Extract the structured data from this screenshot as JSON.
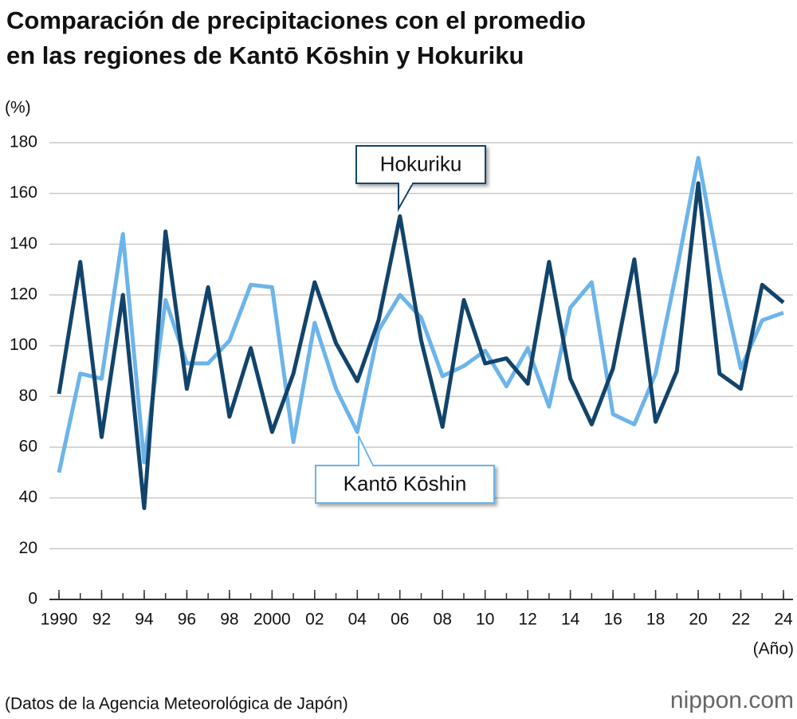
{
  "chart_data": {
    "type": "line",
    "title": [
      "Comparación de precipitaciones con el promedio",
      "en las regiones de Kantō Kōshin y Hokuriku"
    ],
    "y_unit": "(%)",
    "x_unit": "(Año)",
    "source": "(Datos de la Agencia Meteorológica de Japón)",
    "brand": "nippon.com",
    "x": [
      1990,
      1991,
      1992,
      1993,
      1994,
      1995,
      1996,
      1997,
      1998,
      1999,
      2000,
      2001,
      2002,
      2003,
      2004,
      2005,
      2006,
      2007,
      2008,
      2009,
      2010,
      2011,
      2012,
      2013,
      2014,
      2015,
      2016,
      2017,
      2018,
      2019,
      2020,
      2021,
      2022,
      2023,
      2024
    ],
    "series": [
      {
        "name": "Hokuriku",
        "color": "#12446b",
        "values": [
          81,
          133,
          64,
          120,
          36,
          145,
          83,
          123,
          72,
          99,
          66,
          89,
          125,
          101,
          86,
          110,
          151,
          102,
          68,
          118,
          93,
          95,
          85,
          133,
          87,
          69,
          91,
          134,
          70,
          90,
          164,
          89,
          83,
          124,
          117
        ]
      },
      {
        "name": "Kantō Kōshin",
        "color": "#6cb4ea",
        "values": [
          50,
          89,
          87,
          144,
          54,
          118,
          93,
          93,
          102,
          124,
          123,
          62,
          109,
          83,
          66,
          106,
          120,
          111,
          88,
          92,
          98,
          84,
          99,
          76,
          115,
          125,
          73,
          69,
          89,
          130,
          174,
          129,
          91,
          110,
          113
        ]
      }
    ],
    "xlim": [
      1990,
      2024
    ],
    "xticks": [
      1990,
      {
        "value": 1992,
        "label": "92"
      },
      {
        "value": 1994,
        "label": "94"
      },
      {
        "value": 1996,
        "label": "96"
      },
      {
        "value": 1998,
        "label": "98"
      },
      2000,
      {
        "value": 2002,
        "label": "02"
      },
      {
        "value": 2004,
        "label": "04"
      },
      {
        "value": 2006,
        "label": "06"
      },
      {
        "value": 2008,
        "label": "08"
      },
      {
        "value": 2010,
        "label": "10"
      },
      {
        "value": 2012,
        "label": "12"
      },
      {
        "value": 2014,
        "label": "14"
      },
      {
        "value": 2016,
        "label": "16"
      },
      {
        "value": 2018,
        "label": "18"
      },
      {
        "value": 2020,
        "label": "20"
      },
      {
        "value": 2022,
        "label": "22"
      },
      {
        "value": 2024,
        "label": "24"
      }
    ],
    "ylim": [
      0,
      180
    ],
    "yticks": [
      0,
      20,
      40,
      60,
      80,
      100,
      120,
      140,
      160,
      180
    ],
    "grid": true
  }
}
